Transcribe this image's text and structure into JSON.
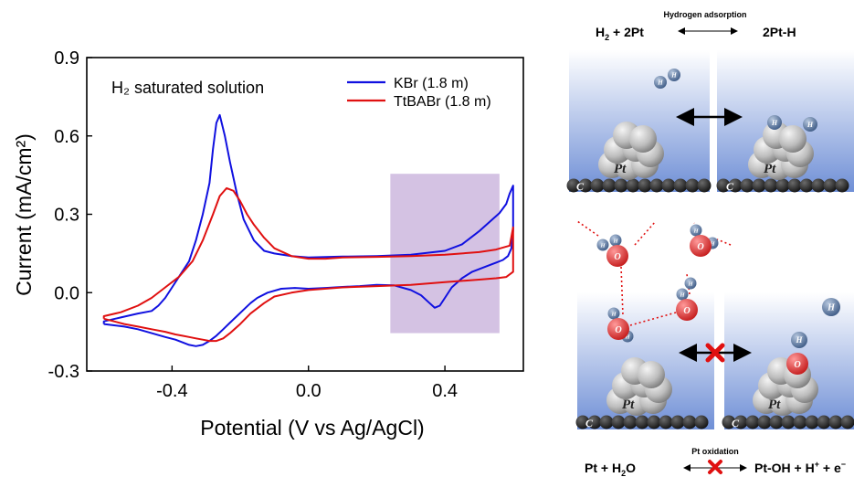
{
  "chart_data": {
    "type": "line",
    "title": "",
    "xlabel": "Potential (V vs Ag/AgCl)",
    "ylabel": "Current (mA/cm²)",
    "xlim": [
      -0.65,
      0.63
    ],
    "ylim": [
      -0.3,
      0.9
    ],
    "xticks": [
      "-0.4",
      "0.0",
      "0.4"
    ],
    "yticks": [
      "-0.3",
      "0.0",
      "0.3",
      "0.6",
      "0.9"
    ],
    "annotation": "H₂ saturated solution",
    "highlight_region": {
      "x": [
        0.24,
        0.56
      ],
      "y": [
        -0.155,
        0.455
      ],
      "color": "#b89ad1"
    },
    "legend_position": "top-right",
    "series": [
      {
        "name": "KBr (1.8 m)",
        "color": "#1010e0",
        "x": [
          -0.6,
          -0.57,
          -0.54,
          -0.5,
          -0.46,
          -0.42,
          -0.39,
          -0.37,
          -0.35,
          -0.33,
          -0.31,
          -0.29,
          -0.27,
          -0.25,
          -0.23,
          -0.21,
          -0.19,
          -0.17,
          -0.15,
          -0.12,
          -0.08,
          -0.04,
          0.0,
          0.05,
          0.1,
          0.15,
          0.2,
          0.25,
          0.3,
          0.33,
          0.355,
          0.37,
          0.385,
          0.4,
          0.42,
          0.45,
          0.48,
          0.52,
          0.55,
          0.57,
          0.585,
          0.595,
          0.6,
          0.6,
          0.59,
          0.58,
          0.56,
          0.53,
          0.5,
          0.47,
          0.45,
          0.4,
          0.3,
          0.2,
          0.1,
          0.0,
          -0.05,
          -0.1,
          -0.13,
          -0.16,
          -0.19,
          -0.21,
          -0.23,
          -0.245,
          -0.26,
          -0.27,
          -0.28,
          -0.29,
          -0.31,
          -0.33,
          -0.35,
          -0.38,
          -0.4,
          -0.42,
          -0.44,
          -0.46,
          -0.5,
          -0.55,
          -0.6,
          -0.6
        ],
        "y": [
          -0.12,
          -0.125,
          -0.13,
          -0.14,
          -0.155,
          -0.17,
          -0.18,
          -0.19,
          -0.2,
          -0.205,
          -0.2,
          -0.185,
          -0.165,
          -0.14,
          -0.115,
          -0.09,
          -0.065,
          -0.04,
          -0.02,
          0.0,
          0.015,
          0.018,
          0.015,
          0.018,
          0.022,
          0.025,
          0.03,
          0.028,
          0.01,
          -0.01,
          -0.04,
          -0.058,
          -0.05,
          -0.02,
          0.02,
          0.055,
          0.08,
          0.1,
          0.115,
          0.125,
          0.14,
          0.17,
          0.24,
          0.41,
          0.38,
          0.34,
          0.305,
          0.27,
          0.235,
          0.205,
          0.185,
          0.16,
          0.145,
          0.14,
          0.138,
          0.135,
          0.14,
          0.15,
          0.16,
          0.2,
          0.28,
          0.38,
          0.5,
          0.6,
          0.68,
          0.65,
          0.55,
          0.42,
          0.3,
          0.2,
          0.12,
          0.06,
          0.02,
          -0.02,
          -0.05,
          -0.07,
          -0.08,
          -0.095,
          -0.11,
          -0.12
        ]
      },
      {
        "name": "TtBABr (1.8 m)",
        "color": "#e01010",
        "x": [
          -0.6,
          -0.57,
          -0.54,
          -0.5,
          -0.46,
          -0.42,
          -0.39,
          -0.37,
          -0.35,
          -0.33,
          -0.31,
          -0.29,
          -0.27,
          -0.25,
          -0.23,
          -0.2,
          -0.17,
          -0.13,
          -0.1,
          -0.05,
          0.0,
          0.1,
          0.2,
          0.3,
          0.4,
          0.5,
          0.55,
          0.58,
          0.6,
          0.6,
          0.59,
          0.55,
          0.5,
          0.4,
          0.3,
          0.2,
          0.1,
          0.05,
          0.0,
          -0.05,
          -0.1,
          -0.13,
          -0.16,
          -0.18,
          -0.2,
          -0.22,
          -0.24,
          -0.26,
          -0.28,
          -0.31,
          -0.34,
          -0.38,
          -0.42,
          -0.46,
          -0.5,
          -0.55,
          -0.6,
          -0.6
        ],
        "y": [
          -0.1,
          -0.11,
          -0.12,
          -0.13,
          -0.14,
          -0.15,
          -0.16,
          -0.165,
          -0.17,
          -0.175,
          -0.18,
          -0.185,
          -0.185,
          -0.175,
          -0.155,
          -0.12,
          -0.08,
          -0.04,
          -0.015,
          0.0,
          0.01,
          0.02,
          0.025,
          0.03,
          0.04,
          0.05,
          0.055,
          0.06,
          0.08,
          0.25,
          0.18,
          0.165,
          0.155,
          0.145,
          0.14,
          0.137,
          0.135,
          0.13,
          0.13,
          0.14,
          0.17,
          0.21,
          0.26,
          0.3,
          0.35,
          0.39,
          0.4,
          0.37,
          0.3,
          0.2,
          0.12,
          0.06,
          0.02,
          -0.02,
          -0.05,
          -0.075,
          -0.09,
          -0.1
        ]
      }
    ]
  },
  "scheme": {
    "top_label": "Hydrogen adsorption",
    "top_left_eq_a": "H",
    "top_left_eq_sub": "2",
    "top_left_eq_b": " + 2Pt",
    "top_right_eq": "2Pt-H",
    "bottom_label": "Pt oxidation",
    "bottom_left_eq_a": "Pt + H",
    "bottom_left_eq_sub": "2",
    "bottom_left_eq_b": "O",
    "bottom_right_eq_a": "Pt-OH + H",
    "bottom_right_eq_sup1": "+",
    "bottom_right_eq_b": " + e",
    "bottom_right_eq_sup2": "−",
    "pt_label": "Pt",
    "c_label": "C",
    "h_label": "H",
    "o_label": "O",
    "proton_label": "H",
    "proton_sup": "+"
  }
}
